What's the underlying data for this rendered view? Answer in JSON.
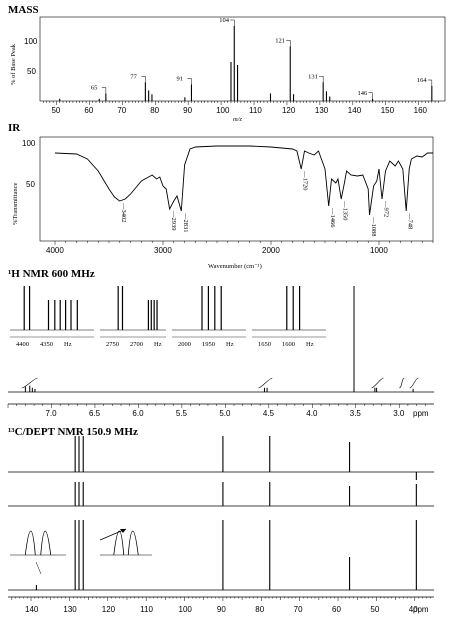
{
  "mass": {
    "title": "MASS",
    "ylabel": "% of Base Peak",
    "xlabel": "m/z",
    "y_ticks": [
      "100",
      "50"
    ],
    "x_ticks": [
      "50",
      "60",
      "70",
      "80",
      "90",
      "100",
      "110",
      "120",
      "130",
      "140",
      "150",
      "160"
    ],
    "peak_labels": [
      "65",
      "77",
      "91",
      "104",
      "121",
      "131",
      "146",
      "164"
    ]
  },
  "ir": {
    "title": "IR",
    "ylabel": "%Transmittance",
    "xlabel": "Wavenumber (cm⁻¹)",
    "y_ticks": [
      "100",
      "50"
    ],
    "x_ticks": [
      "4000",
      "3000",
      "2000",
      "1000"
    ],
    "band_labels": [
      "3402",
      "2939",
      "2831",
      "1720",
      "1466",
      "1350",
      "1088",
      "972",
      "748"
    ]
  },
  "hnmr": {
    "title": "¹H NMR 600 MHz",
    "x_ticks": [
      "7.0",
      "6.5",
      "6.0",
      "5.5",
      "5.0",
      "4.5",
      "4.0",
      "3.5",
      "3.0",
      "ppm"
    ],
    "inset1_ticks": [
      "4400",
      "4350",
      "Hz"
    ],
    "inset2_ticks": [
      "2750",
      "2700",
      "Hz"
    ],
    "inset3_ticks": [
      "2000",
      "1950",
      "Hz"
    ],
    "inset4_ticks": [
      "1650",
      "1600",
      "Hz"
    ]
  },
  "cnmr": {
    "title": "¹³C/DEPT NMR 150.9 MHz",
    "x_ticks": [
      "140",
      "130",
      "120",
      "110",
      "100",
      "90",
      "80",
      "70",
      "60",
      "50",
      "40",
      "ppm"
    ]
  },
  "chart_data": [
    {
      "type": "bar",
      "title": "MASS",
      "xlabel": "m/z",
      "ylabel": "% of Base Peak",
      "xlim": [
        45,
        168
      ],
      "ylim": [
        0,
        100
      ],
      "x": [
        51,
        63,
        65,
        77,
        78,
        79,
        89,
        91,
        103,
        104,
        105,
        115,
        121,
        122,
        131,
        132,
        133,
        146,
        164
      ],
      "values": [
        3,
        3,
        10,
        25,
        14,
        9,
        5,
        22,
        52,
        100,
        48,
        10,
        73,
        9,
        25,
        13,
        6,
        3,
        20
      ]
    },
    {
      "type": "line",
      "title": "IR",
      "xlabel": "Wavenumber (cm⁻¹)",
      "ylabel": "%Transmittance",
      "xlim": [
        4000,
        500
      ],
      "ylim": [
        0,
        100
      ],
      "x": [
        4000,
        3800,
        3700,
        3600,
        3500,
        3450,
        3402,
        3350,
        3300,
        3200,
        3100,
        3060,
        3030,
        3000,
        2970,
        2939,
        2900,
        2870,
        2831,
        2800,
        2750,
        2700,
        2500,
        2200,
        2000,
        1900,
        1800,
        1760,
        1720,
        1690,
        1650,
        1600,
        1560,
        1500,
        1466,
        1440,
        1400,
        1380,
        1350,
        1320,
        1300,
        1260,
        1200,
        1150,
        1100,
        1088,
        1050,
        1020,
        1000,
        972,
        940,
        900,
        850,
        820,
        780,
        748,
        720,
        700,
        650,
        600,
        550,
        500
      ],
      "y": [
        88,
        87,
        82,
        70,
        52,
        44,
        40,
        42,
        47,
        60,
        66,
        62,
        64,
        55,
        52,
        32,
        40,
        45,
        30,
        76,
        92,
        94,
        95,
        95,
        94,
        93,
        92,
        90,
        72,
        90,
        88,
        86,
        90,
        72,
        35,
        62,
        58,
        62,
        42,
        58,
        70,
        66,
        65,
        66,
        52,
        26,
        55,
        60,
        72,
        42,
        70,
        80,
        75,
        80,
        72,
        30,
        72,
        82,
        85,
        84,
        88,
        88
      ]
    },
    {
      "type": "line",
      "title": "¹H NMR 600 MHz",
      "xlabel": "ppm",
      "xlim": [
        7.5,
        2.6
      ],
      "x": [
        7.3,
        7.25,
        7.22,
        7.19,
        4.55,
        4.52,
        3.52,
        3.28,
        3.26,
        2.84
      ],
      "y": [
        5,
        6,
        4,
        3,
        4,
        4,
        100,
        4,
        4,
        3
      ]
    },
    {
      "type": "bar",
      "title": "¹³C/DEPT NMR 150.9 MHz",
      "xlabel": "ppm",
      "xlim": [
        146,
        35
      ],
      "series": [
        {
          "x": [
            128.5,
            127.5,
            126.4,
            90.0,
            77.8,
            57.0,
            39.6
          ],
          "values": [
            36,
            36,
            36,
            36,
            36,
            30,
            -8
          ]
        },
        {
          "x": [
            128.5,
            127.5,
            126.4,
            90.0,
            77.8,
            57.0,
            39.6
          ],
          "values": [
            24,
            24,
            24,
            24,
            24,
            20,
            22
          ]
        },
        {
          "x": [
            138.6,
            128.5,
            127.5,
            126.4,
            90.0,
            77.8,
            57.0,
            39.6
          ],
          "values": [
            5,
            70,
            70,
            70,
            70,
            70,
            33,
            70
          ]
        }
      ]
    }
  ]
}
